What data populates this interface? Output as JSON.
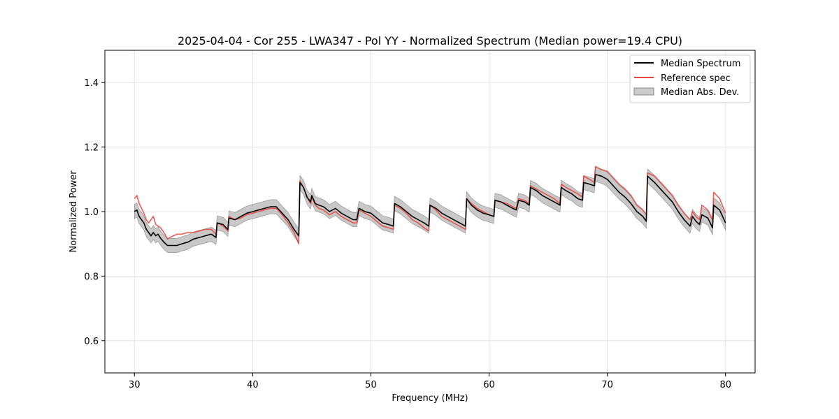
{
  "chart_data": {
    "type": "line",
    "title": "2025-04-04 - Cor 255 - LWA347 - Pol YY - Normalized Spectrum (Median power=19.4 CPU)",
    "xlabel": "Frequency (MHz)",
    "ylabel": "Normalized Power",
    "xlim": [
      27.5,
      82.5
    ],
    "ylim": [
      0.5,
      1.5
    ],
    "xticks": [
      30,
      40,
      50,
      60,
      70,
      80
    ],
    "yticks": [
      0.6,
      0.8,
      1.0,
      1.2,
      1.4
    ],
    "xtick_labels": [
      "30",
      "40",
      "50",
      "60",
      "70",
      "80"
    ],
    "ytick_labels": [
      "0.6",
      "0.8",
      "1.0",
      "1.2",
      "1.4"
    ],
    "grid": true,
    "legend_position": "top-right",
    "series": [
      {
        "name": "Median Spectrum",
        "color": "#000000",
        "x": [
          30.0,
          30.2,
          30.4,
          30.6,
          30.8,
          31.0,
          31.2,
          31.4,
          31.6,
          31.8,
          32.0,
          32.2,
          32.5,
          32.8,
          33.0,
          33.3,
          33.6,
          34.0,
          34.5,
          35.0,
          35.5,
          36.0,
          36.5,
          36.9,
          37.0,
          37.5,
          37.9,
          38.0,
          38.5,
          39.0,
          39.5,
          40.0,
          40.5,
          41.0,
          41.5,
          42.0,
          42.5,
          43.0,
          43.5,
          43.9,
          44.0,
          44.3,
          44.6,
          44.9,
          45.0,
          45.3,
          45.6,
          46.0,
          46.5,
          47.0,
          47.5,
          48.0,
          48.5,
          48.8,
          49.0,
          49.5,
          50.0,
          50.5,
          51.0,
          51.5,
          51.9,
          52.0,
          52.5,
          53.0,
          53.5,
          54.0,
          54.5,
          54.9,
          55.0,
          55.5,
          56.0,
          56.5,
          57.0,
          57.5,
          58.0,
          58.1,
          58.5,
          59.0,
          59.5,
          60.0,
          60.4,
          60.5,
          61.0,
          61.5,
          62.0,
          62.3,
          62.5,
          63.0,
          63.4,
          63.5,
          64.0,
          64.5,
          65.0,
          65.5,
          66.0,
          66.1,
          66.5,
          67.0,
          67.5,
          67.9,
          68.0,
          68.5,
          68.9,
          69.0,
          69.5,
          70.0,
          70.5,
          71.0,
          71.5,
          72.0,
          72.5,
          73.0,
          73.3,
          73.4,
          74.0,
          74.5,
          75.0,
          75.5,
          76.0,
          76.5,
          77.0,
          77.2,
          77.5,
          77.8,
          78.0,
          78.5,
          78.9,
          79.0,
          79.5,
          80.0
        ],
        "y": [
          1.0,
          1.005,
          0.985,
          0.975,
          0.965,
          0.945,
          0.935,
          0.925,
          0.935,
          0.925,
          0.93,
          0.918,
          0.905,
          0.895,
          0.895,
          0.895,
          0.895,
          0.9,
          0.905,
          0.915,
          0.92,
          0.925,
          0.93,
          0.92,
          0.965,
          0.96,
          0.945,
          0.98,
          0.975,
          0.985,
          0.995,
          1.0,
          1.005,
          1.01,
          1.015,
          1.015,
          0.995,
          0.975,
          0.945,
          0.925,
          1.09,
          1.075,
          1.045,
          1.03,
          1.05,
          1.025,
          1.02,
          1.015,
          1.0,
          1.01,
          0.995,
          0.985,
          0.975,
          0.975,
          1.01,
          1.0,
          0.995,
          0.98,
          0.965,
          0.96,
          0.955,
          1.025,
          1.015,
          1.0,
          0.985,
          0.975,
          0.965,
          0.955,
          1.02,
          1.01,
          0.995,
          0.985,
          0.975,
          0.965,
          0.955,
          1.04,
          1.02,
          1.005,
          0.995,
          0.99,
          0.985,
          1.035,
          1.03,
          1.02,
          1.01,
          1.005,
          1.035,
          1.03,
          1.02,
          1.075,
          1.065,
          1.05,
          1.04,
          1.03,
          1.02,
          1.075,
          1.065,
          1.055,
          1.04,
          1.035,
          1.09,
          1.085,
          1.08,
          1.115,
          1.11,
          1.1,
          1.08,
          1.06,
          1.045,
          1.025,
          1.0,
          0.985,
          0.97,
          1.11,
          1.09,
          1.07,
          1.05,
          1.03,
          1.0,
          0.975,
          0.955,
          0.985,
          0.97,
          0.96,
          0.99,
          0.98,
          0.95,
          1.02,
          1.005,
          0.965
        ]
      },
      {
        "name": "Reference spec",
        "color": "#e8413a",
        "x": [
          30.0,
          30.2,
          30.4,
          30.6,
          30.8,
          31.0,
          31.2,
          31.4,
          31.6,
          31.8,
          32.0,
          32.2,
          32.5,
          32.8,
          33.0,
          33.3,
          33.6,
          34.0,
          34.5,
          35.0,
          35.5,
          36.0,
          36.5,
          36.9,
          37.0,
          37.5,
          37.9,
          38.0,
          38.5,
          39.0,
          39.5,
          40.0,
          40.5,
          41.0,
          41.5,
          42.0,
          42.5,
          43.0,
          43.5,
          43.9,
          44.0,
          44.3,
          44.6,
          44.9,
          45.0,
          45.3,
          45.6,
          46.0,
          46.5,
          47.0,
          47.5,
          48.0,
          48.5,
          48.8,
          49.0,
          49.5,
          50.0,
          50.5,
          51.0,
          51.5,
          51.9,
          52.0,
          52.5,
          53.0,
          53.5,
          54.0,
          54.5,
          54.9,
          55.0,
          55.5,
          56.0,
          56.5,
          57.0,
          57.5,
          58.0,
          58.1,
          58.5,
          59.0,
          59.5,
          60.0,
          60.4,
          60.5,
          61.0,
          61.5,
          62.0,
          62.3,
          62.5,
          63.0,
          63.4,
          63.5,
          64.0,
          64.5,
          65.0,
          65.5,
          66.0,
          66.1,
          66.5,
          67.0,
          67.5,
          67.9,
          68.0,
          68.5,
          68.9,
          69.0,
          69.5,
          70.0,
          70.5,
          71.0,
          71.5,
          72.0,
          72.5,
          73.0,
          73.3,
          73.4,
          74.0,
          74.5,
          75.0,
          75.5,
          76.0,
          76.5,
          77.0,
          77.2,
          77.5,
          77.8,
          78.0,
          78.5,
          78.9,
          79.0,
          79.5,
          80.0
        ],
        "y": [
          1.04,
          1.05,
          1.025,
          1.01,
          0.995,
          0.975,
          0.965,
          0.975,
          0.985,
          0.96,
          0.955,
          0.95,
          0.935,
          0.915,
          0.92,
          0.925,
          0.93,
          0.93,
          0.935,
          0.935,
          0.94,
          0.945,
          0.945,
          0.93,
          0.965,
          0.955,
          0.94,
          0.985,
          0.975,
          0.98,
          0.99,
          0.995,
          1.0,
          1.005,
          1.01,
          1.01,
          0.99,
          0.965,
          0.935,
          0.9,
          1.095,
          1.075,
          1.045,
          1.025,
          1.045,
          1.02,
          1.01,
          1.005,
          0.99,
          1.0,
          0.985,
          0.975,
          0.965,
          0.965,
          1.005,
          0.995,
          0.985,
          0.97,
          0.955,
          0.95,
          0.945,
          1.02,
          1.01,
          0.995,
          0.975,
          0.965,
          0.95,
          0.94,
          1.02,
          1.005,
          0.985,
          0.975,
          0.965,
          0.955,
          0.945,
          1.04,
          1.025,
          1.01,
          1.0,
          0.99,
          0.985,
          1.035,
          1.03,
          1.025,
          1.015,
          1.01,
          1.04,
          1.035,
          1.025,
          1.08,
          1.07,
          1.06,
          1.05,
          1.04,
          1.025,
          1.085,
          1.075,
          1.065,
          1.055,
          1.045,
          1.11,
          1.1,
          1.09,
          1.14,
          1.13,
          1.125,
          1.105,
          1.085,
          1.07,
          1.05,
          1.02,
          1.005,
          0.99,
          1.12,
          1.11,
          1.09,
          1.07,
          1.05,
          1.02,
          0.995,
          0.975,
          1.0,
          0.985,
          0.975,
          1.02,
          1.005,
          0.975,
          1.06,
          1.04,
          0.995
        ]
      }
    ],
    "band": {
      "name": "Median Abs. Dev.",
      "color": "#aaaaaa",
      "half_width": 0.022
    }
  }
}
